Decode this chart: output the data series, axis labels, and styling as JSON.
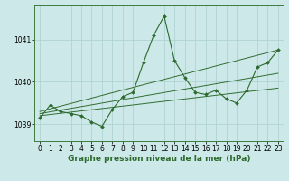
{
  "x": [
    0,
    1,
    2,
    3,
    4,
    5,
    6,
    7,
    8,
    9,
    10,
    11,
    12,
    13,
    14,
    15,
    16,
    17,
    18,
    19,
    20,
    21,
    22,
    23
  ],
  "y_main": [
    1039.15,
    1039.45,
    1039.3,
    1039.25,
    1039.2,
    1039.05,
    1038.95,
    1039.35,
    1039.65,
    1039.75,
    1040.45,
    1041.1,
    1041.55,
    1040.5,
    1040.1,
    1039.75,
    1039.7,
    1039.8,
    1039.6,
    1039.5,
    1039.8,
    1040.35,
    1040.45,
    1040.75
  ],
  "trend_lines": [
    {
      "x0": 0,
      "y0": 1039.2,
      "x1": 23,
      "y1": 1039.85
    },
    {
      "x0": 0,
      "y0": 1039.25,
      "x1": 23,
      "y1": 1040.2
    },
    {
      "x0": 0,
      "y0": 1039.3,
      "x1": 23,
      "y1": 1040.75
    }
  ],
  "background_color": "#cce8e8",
  "grid_color": "#aacfcf",
  "line_color": "#2d6a2d",
  "marker_color": "#2d6a2d",
  "xlabel": "Graphe pression niveau de la mer (hPa)",
  "ylim": [
    1038.6,
    1041.8
  ],
  "xlim": [
    -0.5,
    23.5
  ],
  "yticks": [
    1039,
    1040,
    1041
  ],
  "xticks": [
    0,
    1,
    2,
    3,
    4,
    5,
    6,
    7,
    8,
    9,
    10,
    11,
    12,
    13,
    14,
    15,
    16,
    17,
    18,
    19,
    20,
    21,
    22,
    23
  ],
  "tick_fontsize": 5.5,
  "xlabel_fontsize": 6.5,
  "linewidth": 0.8,
  "marker_size": 2.0
}
